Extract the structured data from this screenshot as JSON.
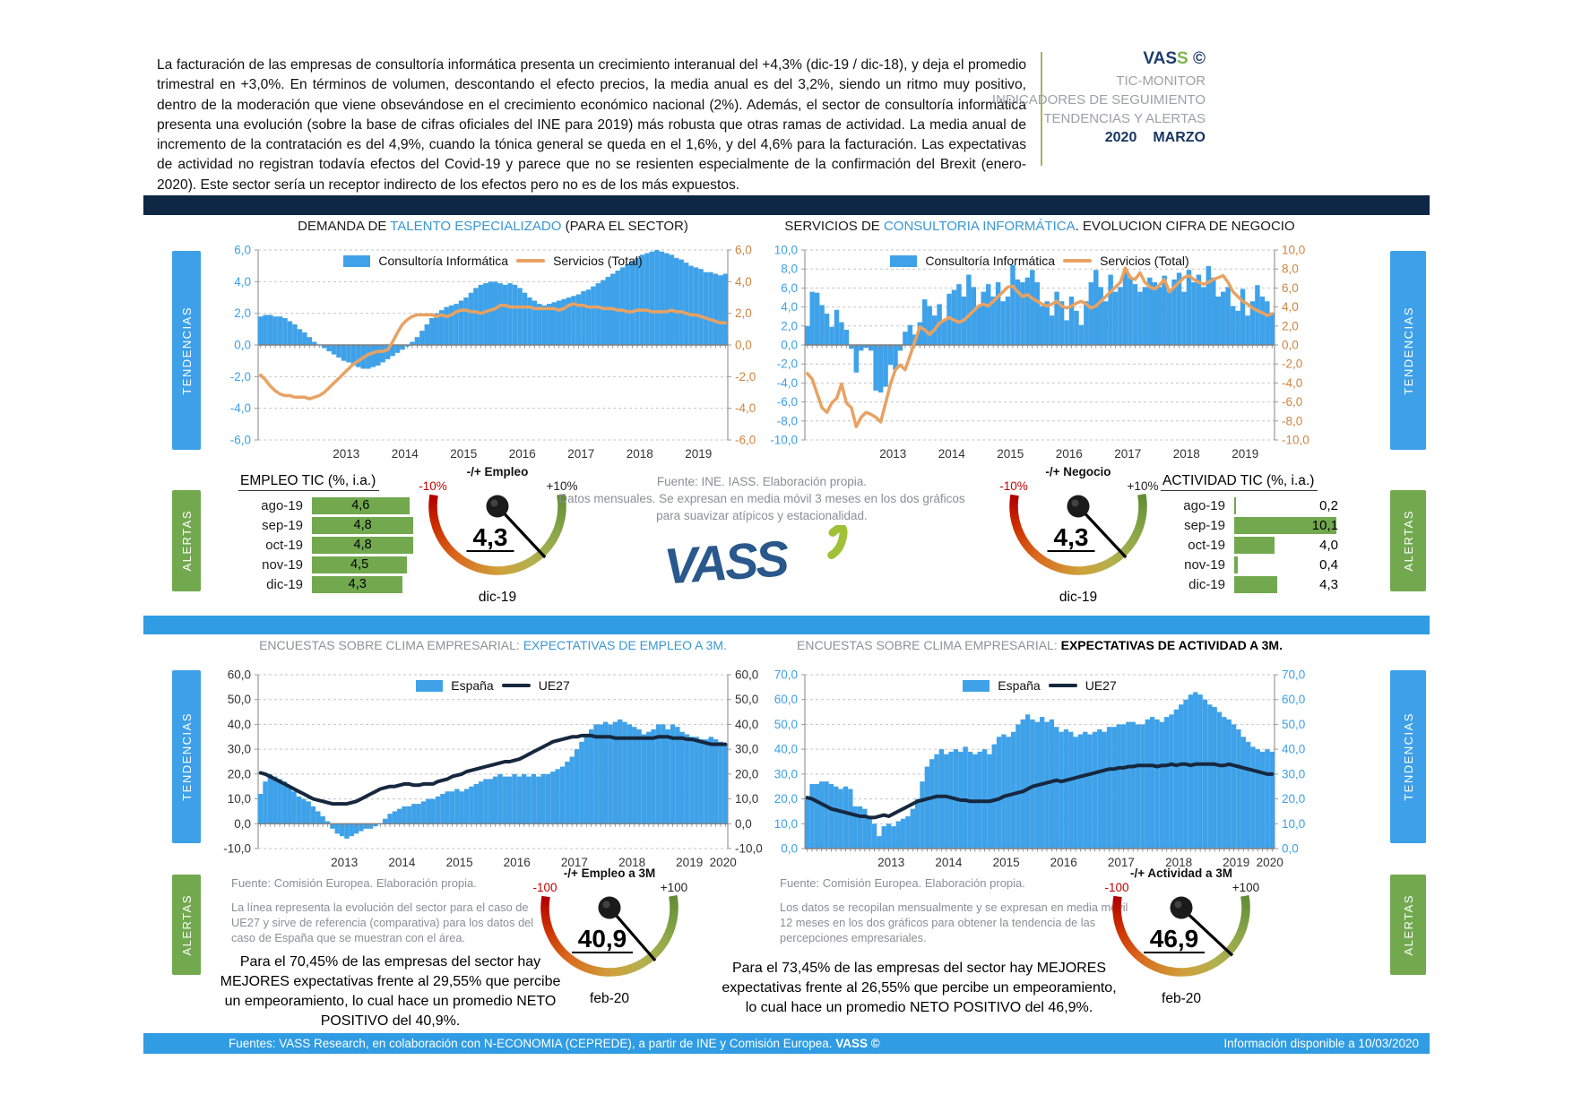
{
  "header": {
    "paragraph": "La facturación de las empresas de consultoría informática presenta un crecimiento interanual del +4,3% (dic-19 / dic-18), y deja el promedio trimestral en +3,0%. En términos de volumen, descontando el efecto precios, la media anual es del 3,2%, siendo un ritmo muy positivo, dentro de la moderación que viene obsevándose en el crecimiento económico nacional (2%). Además, el sector de consultoría informática presenta una evolución  (sobre la base de cifras oficiales del INE para 2019) más robusta que otras ramas de actividad. La media anual de incremento de la contratación es del 4,9%, cuando la tónica general se queda en el 1,6%, y del 4,6% para la facturación. Las expectativas de actividad no registran todavía efectos del Covid-19 y parece que no se resienten especialmente de la confirmación del Brexit (enero-2020). Este sector sería un receptor indirecto de los efectos pero no es de los más expuestos.",
    "brand": {
      "p1": "VAS",
      "p2": "S",
      "p3": " ©",
      "line1": "TIC-MONITOR",
      "line2": "INDICADORES DE SEGUIMIENTO",
      "line3": "TENDENCIAS Y ALERTAS",
      "year": "2020",
      "month": "MARZO"
    }
  },
  "side_tabs": {
    "tendencias": "TENDENCIAS",
    "alertas": "ALERTAS"
  },
  "top_section": {
    "left_title": {
      "p1": "DEMANDA DE ",
      "p2": "TALENTO ESPECIALIZADO",
      "p3": " (PARA EL SECTOR)"
    },
    "right_title": {
      "p1": "SERVICIOS DE ",
      "p2": "CONSULTORIA INFORMÁTICA",
      "p3": ". EVOLUCION CIFRA DE NEGOCIO"
    },
    "source_note": {
      "line1": "Fuente: INE. IASS. Elaboración propia.",
      "line2": "Datos mensuales. Se expresan en media móvil 3 meses  en los dos gráficos para suavizar atípicos y estacionalidad."
    },
    "empleo_table": {
      "title": "EMPLEO TIC (%, i.a.)",
      "max": 5.0,
      "bar_color": "#72a94f",
      "rows": [
        [
          "ago-19",
          "4,6"
        ],
        [
          "sep-19",
          "4,8"
        ],
        [
          "oct-19",
          "4,8"
        ],
        [
          "nov-19",
          "4,5"
        ],
        [
          "dic-19",
          "4,3"
        ]
      ]
    },
    "actividad_table": {
      "title": "ACTIVIDAD TIC (%, i.a.)",
      "max": 10.5,
      "bar_color": "#72a94f",
      "rows": [
        [
          "ago-19",
          "0,2"
        ],
        [
          "sep-19",
          "10,1"
        ],
        [
          "oct-19",
          "4,0"
        ],
        [
          "nov-19",
          "0,4"
        ],
        [
          "dic-19",
          "4,3"
        ]
      ]
    },
    "gauge_empleo": {
      "title": "-/+ Empleo",
      "min_label": "-10%",
      "max_label": "+10%",
      "min": -10,
      "max": 10,
      "value": 4.3,
      "value_label": "4,3",
      "sub": "dic-19"
    },
    "gauge_negocio": {
      "title": "-/+ Negocio",
      "min_label": "-10%",
      "max_label": "+10%",
      "min": -10,
      "max": 10,
      "value": 4.3,
      "value_label": "4,3",
      "sub": "dic-19"
    }
  },
  "bottom_section": {
    "left_title": {
      "p1": "ENCUESTAS SOBRE CLIMA EMPRESARIAL: ",
      "p2": "EXPECTATIVAS DE EMPLEO A 3M."
    },
    "right_title": {
      "p1": "ENCUESTAS SOBRE CLIMA EMPRESARIAL: ",
      "p2": "EXPECTATIVAS DE ACTIVIDAD A 3M."
    },
    "left_source": {
      "line1": "Fuente: Comisión Europea. Elaboración propia.",
      "note": "La línea representa la evolución del sector para el caso de UE27 y sirve de referencia (comparativa) para los datos del caso de España que se muestran con el área."
    },
    "right_source": {
      "line1": "Fuente: Comisión Europea. Elaboración propia.",
      "note": "Los datos se recopilan mensualmente y  se expresan en media móvil 12 meses  en los dos gráficos para obtener la tendencia de las percepciones empresariales."
    },
    "left_summary": "Para el 70,45% de las empresas del sector hay MEJORES expectativas frente al 29,55% que percibe un empeoramiento, lo cual hace un promedio NETO POSITIVO del 40,9%.",
    "right_summary": "Para el 73,45% de las empresas del sector hay MEJORES expectativas frente al 26,55% que percibe un empeoramiento, lo cual hace un promedio NETO POSITIVO del 46,9%.",
    "gauge_empleo3m": {
      "title": "-/+ Empleo a 3M",
      "min_label": "-100",
      "max_label": "+100",
      "min": -100,
      "max": 100,
      "value": 40.9,
      "value_label": "40,9",
      "sub": "feb-20"
    },
    "gauge_actividad3m": {
      "title": "-/+ Actividad a 3M",
      "min_label": "-100",
      "max_label": "+100",
      "min": -100,
      "max": 100,
      "value": 46.9,
      "value_label": "46,9",
      "sub": "feb-20"
    }
  },
  "footer": {
    "left_normal": "Fuentes: VASS Research, en colaboración con N-ECONOMIA (CEPREDE), a partir de INE y Comisión Europea. ",
    "left_bold": "VASS ©",
    "right": "Información disponible a 10/03/2020"
  },
  "colors": {
    "bar_blue": "#3fa2e9",
    "line_orange": "#e8a263",
    "line_navy": "#16283f",
    "axis_blue": "#3da0e8",
    "axis_orange": "#d08440",
    "axis_dark": "#333333",
    "tab_blue": "#3da0e8",
    "tab_green": "#72a94f",
    "navy_bar": "#0d2745",
    "blue_bar": "#2f9ce3"
  },
  "chart_data": [
    {
      "id": "talento",
      "type": "bar+line",
      "title": "DEMANDA DE TALENTO ESPECIALIZADO (PARA EL SECTOR)",
      "legend": [
        "Consultoría Informática",
        "Servicios (Total)"
      ],
      "ylim": [
        -6,
        6
      ],
      "ystep": 2,
      "start_year": 2012,
      "x_years": [
        2013,
        2014,
        2015,
        2016,
        2017,
        2018,
        2019
      ],
      "bar_color": "#3fa2e9",
      "line_color": "#e8a263",
      "line_width": 3.5,
      "axis_left_color": "#3da0e8",
      "axis_right_color": "#d08440",
      "bars": [
        1.8,
        1.9,
        1.9,
        1.8,
        1.8,
        1.7,
        1.5,
        1.3,
        1.0,
        0.8,
        0.5,
        0.2,
        0.0,
        -0.2,
        -0.4,
        -0.6,
        -0.8,
        -1.0,
        -1.1,
        -1.3,
        -1.4,
        -1.5,
        -1.5,
        -1.4,
        -1.3,
        -1.1,
        -0.9,
        -0.7,
        -0.5,
        -0.3,
        -0.1,
        0.2,
        0.5,
        0.9,
        1.3,
        1.7,
        2.0,
        2.2,
        2.4,
        2.5,
        2.6,
        2.8,
        3.0,
        3.3,
        3.6,
        3.8,
        3.9,
        4.0,
        4.0,
        3.9,
        3.8,
        3.9,
        3.8,
        3.6,
        3.3,
        3.0,
        2.8,
        2.6,
        2.5,
        2.6,
        2.7,
        2.8,
        2.9,
        3.0,
        3.1,
        3.2,
        3.4,
        3.5,
        3.7,
        3.9,
        4.1,
        4.3,
        4.5,
        4.7,
        4.9,
        5.1,
        5.3,
        5.5,
        5.7,
        5.8,
        5.9,
        6.0,
        5.9,
        5.8,
        5.7,
        5.5,
        5.4,
        5.2,
        5.0,
        4.9,
        4.8,
        4.6,
        4.6,
        4.5,
        4.4,
        4.5
      ],
      "line": [
        -1.9,
        -2.2,
        -2.6,
        -2.9,
        -3.1,
        -3.2,
        -3.2,
        -3.3,
        -3.3,
        -3.3,
        -3.4,
        -3.3,
        -3.2,
        -3.0,
        -2.7,
        -2.4,
        -2.1,
        -1.8,
        -1.5,
        -1.2,
        -1.0,
        -0.8,
        -0.6,
        -0.5,
        -0.4,
        -0.4,
        -0.3,
        0.2,
        0.8,
        1.3,
        1.6,
        1.8,
        1.9,
        1.9,
        1.9,
        1.9,
        1.8,
        1.9,
        1.8,
        1.9,
        2.1,
        2.2,
        2.2,
        2.1,
        2.1,
        2.0,
        2.1,
        2.2,
        2.3,
        2.5,
        2.5,
        2.4,
        2.4,
        2.4,
        2.4,
        2.4,
        2.3,
        2.3,
        2.3,
        2.3,
        2.3,
        2.2,
        2.3,
        2.5,
        2.6,
        2.5,
        2.5,
        2.4,
        2.4,
        2.4,
        2.3,
        2.3,
        2.3,
        2.2,
        2.2,
        2.1,
        2.1,
        2.2,
        2.2,
        2.2,
        2.1,
        2.1,
        2.1,
        2.1,
        2.2,
        2.1,
        2.1,
        2.0,
        1.9,
        1.9,
        1.8,
        1.7,
        1.6,
        1.5,
        1.4,
        1.4
      ]
    },
    {
      "id": "negocio",
      "type": "bar+line",
      "title": "SERVICIOS DE CONSULTORIA INFORMÁTICA. EVOLUCION CIFRA DE NEGOCIO",
      "legend": [
        "Consultoría Informática",
        "Servicios (Total)"
      ],
      "ylim": [
        -10,
        10
      ],
      "ystep": 2,
      "start_year": 2012,
      "x_years": [
        2013,
        2014,
        2015,
        2016,
        2017,
        2018,
        2019
      ],
      "bar_color": "#3fa2e9",
      "line_color": "#e8a263",
      "line_width": 3.5,
      "axis_left_color": "#3da0e8",
      "axis_right_color": "#d08440",
      "bars": [
        2.0,
        5.6,
        5.5,
        4.2,
        3.3,
        1.9,
        3.7,
        2.4,
        1.6,
        -0.4,
        -2.9,
        -0.6,
        -0.3,
        -0.6,
        -4.8,
        -5.0,
        -4.4,
        -2.1,
        -2.6,
        -0.6,
        1.4,
        2.1,
        1.1,
        2.4,
        4.8,
        4.1,
        3.1,
        4.3,
        2.6,
        5.4,
        5.8,
        6.4,
        5.1,
        7.4,
        6.1,
        4.1,
        5.6,
        6.4,
        5.1,
        6.6,
        4.6,
        5.1,
        8.4,
        6.9,
        6.6,
        7.1,
        7.9,
        6.6,
        4.1,
        4.6,
        3.1,
        5.6,
        4.6,
        2.6,
        5.1,
        3.6,
        2.1,
        4.6,
        6.6,
        7.9,
        6.1,
        4.6,
        7.4,
        5.6,
        6.1,
        7.9,
        7.1,
        6.4,
        5.6,
        6.1,
        7.1,
        6.6,
        6.1,
        7.3,
        5.6,
        6.9,
        7.6,
        5.6,
        7.9,
        6.6,
        7.4,
        6.1,
        8.3,
        7.1,
        5.1,
        5.6,
        6.1,
        4.1,
        3.6,
        5.9,
        3.1,
        4.6,
        6.3,
        5.1,
        4.6,
        3.4
      ],
      "line": [
        -3.0,
        -3.6,
        -5.1,
        -6.6,
        -7.1,
        -6.1,
        -5.6,
        -4.1,
        -6.1,
        -6.6,
        -8.6,
        -7.6,
        -7.1,
        -7.3,
        -7.6,
        -8.1,
        -6.1,
        -4.1,
        -2.6,
        -2.1,
        -2.6,
        -1.1,
        0.4,
        1.9,
        1.6,
        1.1,
        1.6,
        2.3,
        2.6,
        2.9,
        2.6,
        2.4,
        2.6,
        3.1,
        3.6,
        4.1,
        4.3,
        4.1,
        4.6,
        5.1,
        5.6,
        6.1,
        6.2,
        5.6,
        5.1,
        5.3,
        4.9,
        4.6,
        4.3,
        4.1,
        4.3,
        4.6,
        4.1,
        3.9,
        4.1,
        4.4,
        4.6,
        4.3,
        3.9,
        4.1,
        4.6,
        5.1,
        5.6,
        6.1,
        6.6,
        8.1,
        7.1,
        6.9,
        7.6,
        6.6,
        6.1,
        5.9,
        6.3,
        6.9,
        5.6,
        6.1,
        6.6,
        7.1,
        7.3,
        6.9,
        6.6,
        6.4,
        6.6,
        6.9,
        7.1,
        7.3,
        6.6,
        5.6,
        5.1,
        4.6,
        4.3,
        3.9,
        3.6,
        3.4,
        3.1,
        3.3
      ]
    },
    {
      "id": "empleo3m",
      "type": "bar+line",
      "title": "ENCUESTAS SOBRE CLIMA EMPRESARIAL: EXPECTATIVAS DE EMPLEO A 3M.",
      "legend": [
        "España",
        "UE27"
      ],
      "ylim": [
        -10,
        60
      ],
      "ystep": 10,
      "start_year": 2012,
      "x_years": [
        2013,
        2014,
        2015,
        2016,
        2017,
        2018,
        2019,
        2020
      ],
      "bar_color": "#3fa2e9",
      "line_color": "#16283f",
      "line_width": 4,
      "axis_left_color": "#333333",
      "axis_right_color": "#333333",
      "bars": [
        12,
        17,
        20,
        19,
        18,
        17,
        15,
        13,
        11,
        10,
        9,
        7,
        5,
        3,
        1,
        -2,
        -4,
        -5,
        -6,
        -5,
        -4,
        -3,
        -2,
        -2,
        -1,
        0,
        2,
        4,
        5,
        6,
        7,
        7,
        8,
        8,
        9,
        10,
        10,
        11,
        12,
        13,
        13,
        14,
        13,
        14,
        15,
        16,
        17,
        18,
        18,
        19,
        20,
        19,
        19,
        20,
        19,
        20,
        19,
        20,
        19,
        20,
        20,
        21,
        22,
        23,
        25,
        27,
        30,
        33,
        36,
        38,
        40,
        40,
        41,
        40,
        41,
        42,
        41,
        40,
        39,
        38,
        36,
        37,
        38,
        40,
        40,
        38,
        40,
        39,
        37,
        36,
        35,
        35,
        34,
        34,
        35,
        34,
        33,
        32
      ],
      "line": [
        20.5,
        20,
        19,
        18,
        17,
        16,
        15,
        14,
        13,
        12,
        11,
        10,
        9.5,
        9,
        8.5,
        8,
        8,
        8,
        8,
        8.5,
        9,
        10,
        11,
        12,
        13,
        14,
        14.5,
        15,
        15,
        15.5,
        16,
        16,
        15.5,
        15.5,
        16,
        16,
        16,
        17,
        17.5,
        18,
        19,
        19.5,
        20,
        21,
        21.5,
        22,
        22.5,
        23,
        23.5,
        24,
        24.5,
        25,
        25,
        25.5,
        26,
        27,
        28,
        29,
        30,
        31,
        32,
        33,
        33.5,
        34,
        34.5,
        35,
        35,
        35.5,
        35.5,
        35.5,
        35,
        35,
        35,
        35,
        34.5,
        34.5,
        34.5,
        34.5,
        34.5,
        34.5,
        34.5,
        34.5,
        34.5,
        35,
        35,
        35,
        34.5,
        34.5,
        34.5,
        34,
        34,
        33.5,
        33,
        32.5,
        32,
        32,
        32,
        32
      ]
    },
    {
      "id": "actividad3m",
      "type": "bar+line",
      "title": "ENCUESTAS SOBRE CLIMA EMPRESARIAL: EXPECTATIVAS DE ACTIVIDAD A 3M.",
      "legend": [
        "España",
        "UE27"
      ],
      "ylim": [
        0,
        70
      ],
      "ystep": 10,
      "start_year": 2012,
      "x_years": [
        2013,
        2014,
        2015,
        2016,
        2017,
        2018,
        2019,
        2020
      ],
      "bar_color": "#3fa2e9",
      "line_color": "#16283f",
      "line_width": 4,
      "axis_left_color": "#3da0e8",
      "axis_right_color": "#3da0e8",
      "bars": [
        20,
        26,
        26,
        27,
        27,
        26,
        25,
        24,
        25,
        24,
        17,
        17,
        16,
        13,
        10,
        5,
        9,
        10,
        9,
        11,
        12,
        13,
        16,
        20,
        27,
        33,
        36,
        38,
        40,
        38,
        39,
        40,
        39,
        41,
        39,
        38,
        39,
        40,
        38,
        42,
        45,
        46,
        45,
        47,
        50,
        52,
        54,
        52,
        51,
        53,
        51,
        52,
        49,
        47,
        48,
        47,
        45,
        46,
        47,
        46,
        47,
        48,
        47,
        49,
        49,
        50,
        50,
        51,
        51,
        50,
        50,
        52,
        53,
        52,
        51,
        53,
        54,
        56,
        58,
        60,
        62,
        63,
        62,
        60,
        58,
        57,
        55,
        53,
        52,
        50,
        48,
        45,
        43,
        41,
        40,
        39,
        40,
        39
      ],
      "line": [
        20.5,
        20,
        19,
        18,
        17,
        16,
        15.5,
        15,
        14.5,
        14,
        13.5,
        13,
        13,
        12.5,
        12.5,
        13,
        13.5,
        13,
        14,
        15,
        16,
        17,
        18,
        19,
        19.5,
        20,
        20.5,
        21,
        21,
        21,
        20.5,
        20,
        19.5,
        19.5,
        19,
        19,
        19,
        19,
        19,
        19.5,
        20,
        21,
        21.5,
        22,
        22.5,
        23,
        24,
        25,
        25.5,
        26,
        26.5,
        27,
        27.5,
        27,
        27.5,
        28,
        28.5,
        29,
        29.5,
        30,
        30.5,
        31,
        31.5,
        32,
        32,
        32.5,
        32.5,
        33,
        33,
        33.5,
        33.5,
        33.5,
        33.5,
        33,
        33.5,
        33.5,
        34,
        33.5,
        34,
        34,
        33.5,
        34,
        34,
        34,
        34,
        34,
        33.5,
        33.5,
        34,
        33.5,
        33,
        32.5,
        32,
        31.5,
        31,
        30.5,
        30,
        30
      ]
    }
  ]
}
